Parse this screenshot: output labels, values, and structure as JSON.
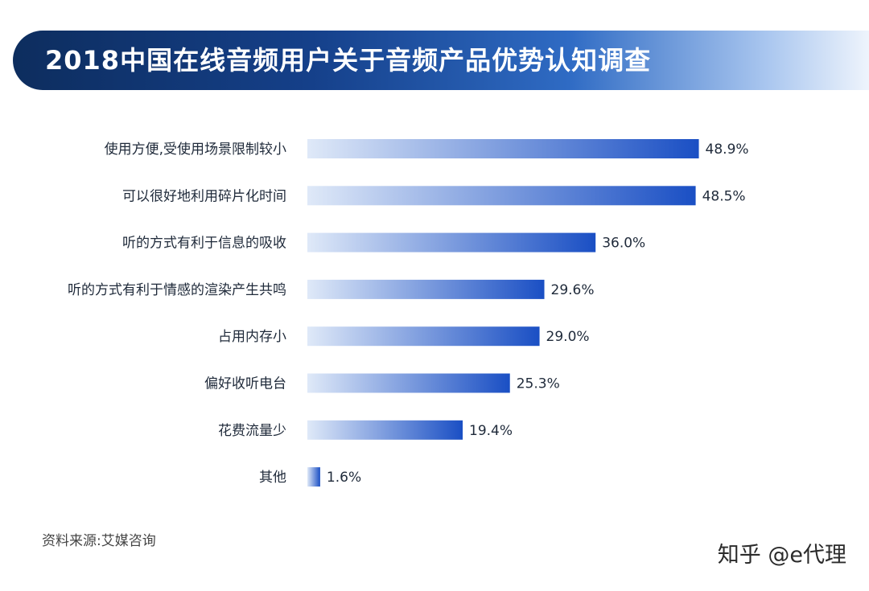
{
  "chart_data": {
    "type": "bar",
    "orientation": "horizontal",
    "title": "2018中国在线音频用户关于音频产品优势认知调查",
    "categories": [
      "使用方便,受使用场景限制较小",
      "可以很好地利用碎片化时间",
      "听的方式有利于信息的吸收",
      "听的方式有利于情感的渲染产生共鸣",
      "占用内存小",
      "偏好收听电台",
      "花费流量少",
      "其他"
    ],
    "values": [
      48.9,
      48.5,
      36.0,
      29.6,
      29.0,
      25.3,
      19.4,
      1.6
    ],
    "value_labels": [
      "48.9%",
      "48.5%",
      "36.0%",
      "29.6%",
      "29.0%",
      "25.3%",
      "19.4%",
      "1.6%"
    ],
    "unit": "%",
    "xlim": [
      0,
      50
    ],
    "grid": false,
    "legend": "none",
    "colors": {
      "bar_start": "#dfe9f8",
      "bar_end": "#1a4fc4",
      "title_band": "#15408a"
    }
  },
  "source_text": "资料来源:艾媒咨询",
  "watermark_text": "知乎 @e代理"
}
